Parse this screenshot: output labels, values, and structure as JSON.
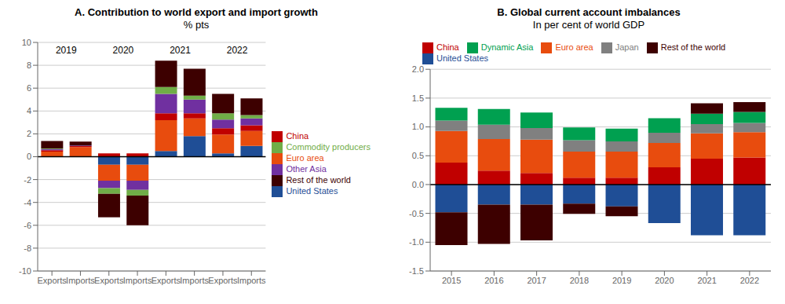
{
  "chart_data": [
    {
      "type": "bar",
      "title": "A. Contribution to world export and import growth",
      "subtitle": "% pts",
      "categories": [
        "Exports",
        "Imports",
        "Exports",
        "Imports",
        "Exports",
        "Imports",
        "Exports",
        "Imports"
      ],
      "annotations": [
        "2019",
        "2020",
        "2021",
        "2022"
      ],
      "series": [
        {
          "name": "United States",
          "color": "#1f4e96",
          "values": [
            0.0,
            0.0,
            -0.7,
            -0.7,
            0.5,
            1.8,
            0.3,
            0.95
          ]
        },
        {
          "name": "Euro area",
          "color": "#e84c0e",
          "values": [
            0.45,
            0.85,
            -1.4,
            -1.4,
            2.7,
            1.55,
            1.65,
            1.3
          ]
        },
        {
          "name": "China",
          "color": "#c00000",
          "values": [
            0.12,
            0.08,
            0.3,
            0.3,
            0.6,
            0.45,
            0.55,
            0.5
          ]
        },
        {
          "name": "Other Asia",
          "color": "#7030a0",
          "values": [
            0.1,
            0.05,
            -0.65,
            -0.8,
            1.7,
            1.2,
            0.75,
            0.6
          ]
        },
        {
          "name": "Commodity producers",
          "color": "#70ad47",
          "values": [
            0.05,
            0.0,
            -0.5,
            -0.5,
            0.6,
            0.35,
            0.55,
            0.3
          ]
        },
        {
          "name": "Rest of the world",
          "color": "#3d0000",
          "values": [
            0.65,
            0.35,
            -2.05,
            -2.6,
            2.3,
            2.35,
            1.7,
            1.45
          ]
        }
      ],
      "ylim": [
        -10,
        10
      ],
      "yticks": [
        -10,
        -8,
        -6,
        -4,
        -2,
        0,
        2,
        4,
        6,
        8,
        10
      ],
      "stacked": true,
      "grid": true,
      "legend": "right"
    },
    {
      "type": "bar",
      "title": "B. Global current account imbalances",
      "subtitle": "In per cent of world GDP",
      "categories": [
        "2015",
        "2016",
        "2017",
        "2018",
        "2019",
        "2020",
        "2021",
        "2022"
      ],
      "series": [
        {
          "name": "United States",
          "color": "#1f4e96",
          "values": [
            -0.48,
            -0.35,
            -0.35,
            -0.33,
            -0.38,
            -0.67,
            -0.88,
            -0.88
          ]
        },
        {
          "name": "China",
          "color": "#c00000",
          "values": [
            0.38,
            0.24,
            0.2,
            0.12,
            0.12,
            0.3,
            0.45,
            0.47
          ]
        },
        {
          "name": "Euro area",
          "color": "#e84c0e",
          "values": [
            0.55,
            0.55,
            0.58,
            0.45,
            0.45,
            0.42,
            0.44,
            0.44
          ]
        },
        {
          "name": "Japan",
          "color": "#808080",
          "values": [
            0.18,
            0.25,
            0.2,
            0.2,
            0.18,
            0.18,
            0.16,
            0.16
          ]
        },
        {
          "name": "Dynamic Asia",
          "color": "#00a050",
          "values": [
            0.22,
            0.27,
            0.27,
            0.22,
            0.22,
            0.25,
            0.18,
            0.19
          ]
        },
        {
          "name": "Rest of the world",
          "color": "#3d0000",
          "values": [
            -0.57,
            -0.68,
            -0.62,
            -0.18,
            -0.17,
            0.0,
            0.18,
            0.17
          ]
        }
      ],
      "ylim": [
        -1.5,
        2.0
      ],
      "yticks": [
        -1.5,
        {
          "value": -1,
          "label": "-1.0"
        },
        -0.5,
        {
          "value": 0,
          "label": "0.0"
        },
        0.5,
        {
          "value": 1,
          "label": "1.0"
        },
        1.5,
        {
          "value": 2,
          "label": "2.0"
        }
      ],
      "stacked": true,
      "grid": true,
      "legend": "top"
    }
  ]
}
